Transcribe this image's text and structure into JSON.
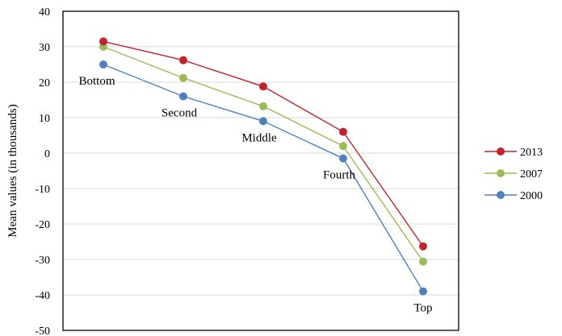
{
  "chart_data": {
    "type": "line",
    "title": "",
    "xlabel": "",
    "ylabel": "Mean values (in thousands)",
    "ylim": [
      -50,
      40
    ],
    "ytick_step": 10,
    "grid": true,
    "legend_position": "right",
    "categories": [
      "Bottom",
      "Second",
      "Middle",
      "Fourth",
      "Top"
    ],
    "series": [
      {
        "name": "2013",
        "color": "#c0232b",
        "values": [
          31.5,
          26.2,
          18.8,
          6.0,
          -26.3
        ]
      },
      {
        "name": "2007",
        "color": "#9bbb59",
        "values": [
          30.0,
          21.2,
          13.2,
          2.0,
          -30.6
        ]
      },
      {
        "name": "2000",
        "color": "#4f81bd",
        "values": [
          25.0,
          16.0,
          9.0,
          -1.5,
          -39.0
        ]
      }
    ]
  }
}
